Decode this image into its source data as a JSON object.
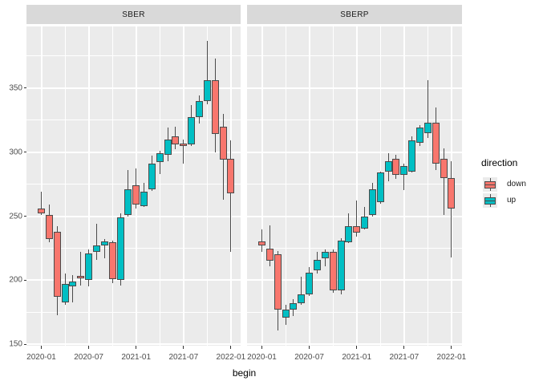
{
  "colors": {
    "page_background": "#ffffff",
    "panel_background": "#EBEBEB",
    "strip_background": "#D9D9D9",
    "gridline": "#ffffff",
    "candle_border": "#4a4a4a",
    "axis_text": "#4d4d4d",
    "down": "#F8766D",
    "up": "#00BFC4"
  },
  "chart_data": {
    "type": "candlestick",
    "xlabel": "begin",
    "ylabel": "",
    "y_ticks": [
      150,
      200,
      250,
      300,
      350
    ],
    "y_minor_ticks": [
      175,
      225,
      275,
      325,
      375
    ],
    "y_domain": [
      149,
      398
    ],
    "x_ticks": [
      {
        "label": "2020-01",
        "month": 0
      },
      {
        "label": "2020-07",
        "month": 6
      },
      {
        "label": "2021-01",
        "month": 12
      },
      {
        "label": "2021-07",
        "month": 18
      },
      {
        "label": "2022-01",
        "month": 24
      }
    ],
    "x_minor_months": [
      3,
      9,
      15,
      21
    ],
    "legend": {
      "title": "direction",
      "items": [
        {
          "label": "down",
          "color": "#F8766D"
        },
        {
          "label": "up",
          "color": "#00BFC4"
        }
      ]
    },
    "candle_fields": [
      "begin",
      "open",
      "high",
      "low",
      "close",
      "direction"
    ],
    "facets": [
      {
        "label": "SBER",
        "candles": [
          [
            "2020-01",
            256,
            269,
            251,
            252,
            "down"
          ],
          [
            "2020-02",
            251,
            259,
            230,
            232,
            "down"
          ],
          [
            "2020-03",
            238,
            242,
            173,
            187,
            "down"
          ],
          [
            "2020-04",
            183,
            205,
            181,
            197,
            "up"
          ],
          [
            "2020-05",
            195,
            204,
            183,
            199,
            "up"
          ],
          [
            "2020-06",
            203.5,
            222,
            196,
            202,
            "down"
          ],
          [
            "2020-07",
            200,
            224,
            195,
            221,
            "up"
          ],
          [
            "2020-08",
            222,
            244,
            216,
            227,
            "up"
          ],
          [
            "2020-09",
            227,
            232,
            217,
            230.5,
            "up"
          ],
          [
            "2020-10",
            230,
            231,
            198,
            201,
            "down"
          ],
          [
            "2020-11",
            200,
            252,
            196,
            249,
            "up"
          ],
          [
            "2020-12",
            251,
            286,
            250,
            271,
            "up"
          ],
          [
            "2021-01",
            274,
            287,
            256,
            259,
            "down"
          ],
          [
            "2021-02",
            258,
            276,
            257,
            269,
            "up"
          ],
          [
            "2021-03",
            271,
            297,
            270,
            291,
            "up"
          ],
          [
            "2021-04",
            292,
            301,
            283,
            299,
            "up"
          ],
          [
            "2021-05",
            298,
            319,
            293,
            310,
            "up"
          ],
          [
            "2021-06",
            312,
            320,
            302,
            306,
            "down"
          ],
          [
            "2021-07",
            306.5,
            310,
            291,
            305,
            "down"
          ],
          [
            "2021-08",
            306,
            337,
            305,
            327,
            "up"
          ],
          [
            "2021-09",
            327,
            344,
            322,
            340,
            "up"
          ],
          [
            "2021-10",
            340,
            387,
            337,
            356,
            "up"
          ],
          [
            "2021-11",
            356,
            373,
            300,
            314,
            "down"
          ],
          [
            "2021-12",
            320,
            330,
            263,
            294,
            "down"
          ],
          [
            "2022-01",
            295,
            309,
            222,
            268,
            "down"
          ]
        ]
      },
      {
        "label": "SBERP",
        "candles": [
          [
            "2020-01",
            230.5,
            240,
            222,
            227,
            "down"
          ],
          [
            "2020-02",
            225,
            243,
            211,
            215,
            "down"
          ],
          [
            "2020-03",
            220.5,
            223,
            161,
            177,
            "down"
          ],
          [
            "2020-04",
            171,
            181,
            165,
            177,
            "up"
          ],
          [
            "2020-05",
            177,
            185,
            172,
            182,
            "up"
          ],
          [
            "2020-06",
            182,
            203,
            181,
            189,
            "up"
          ],
          [
            "2020-07",
            189,
            210,
            188,
            206,
            "up"
          ],
          [
            "2020-08",
            207.5,
            222,
            205,
            216,
            "up"
          ],
          [
            "2020-09",
            217,
            224,
            211,
            222.5,
            "up"
          ],
          [
            "2020-10",
            222.5,
            224,
            190,
            192,
            "down"
          ],
          [
            "2020-11",
            192,
            233,
            189,
            231,
            "up"
          ],
          [
            "2020-12",
            229.5,
            252,
            229,
            242,
            "up"
          ],
          [
            "2021-01",
            242,
            262,
            234,
            237.5,
            "down"
          ],
          [
            "2021-02",
            240.5,
            257,
            240,
            250,
            "up"
          ],
          [
            "2021-03",
            251,
            276,
            250,
            271,
            "up"
          ],
          [
            "2021-04",
            261,
            285,
            260,
            284,
            "up"
          ],
          [
            "2021-05",
            285,
            299,
            277,
            293,
            "up"
          ],
          [
            "2021-06",
            295,
            298,
            279,
            282,
            "down"
          ],
          [
            "2021-07",
            282,
            291,
            270.5,
            289,
            "up"
          ],
          [
            "2021-08",
            285,
            312,
            284,
            309,
            "up"
          ],
          [
            "2021-09",
            307,
            321,
            305,
            319,
            "up"
          ],
          [
            "2021-10",
            315,
            356,
            311,
            323,
            "up"
          ],
          [
            "2021-11",
            323,
            335,
            286,
            291,
            "down"
          ],
          [
            "2021-12",
            295,
            303,
            251,
            280,
            "down"
          ],
          [
            "2022-01",
            280,
            293,
            218,
            256,
            "down"
          ]
        ]
      }
    ]
  }
}
